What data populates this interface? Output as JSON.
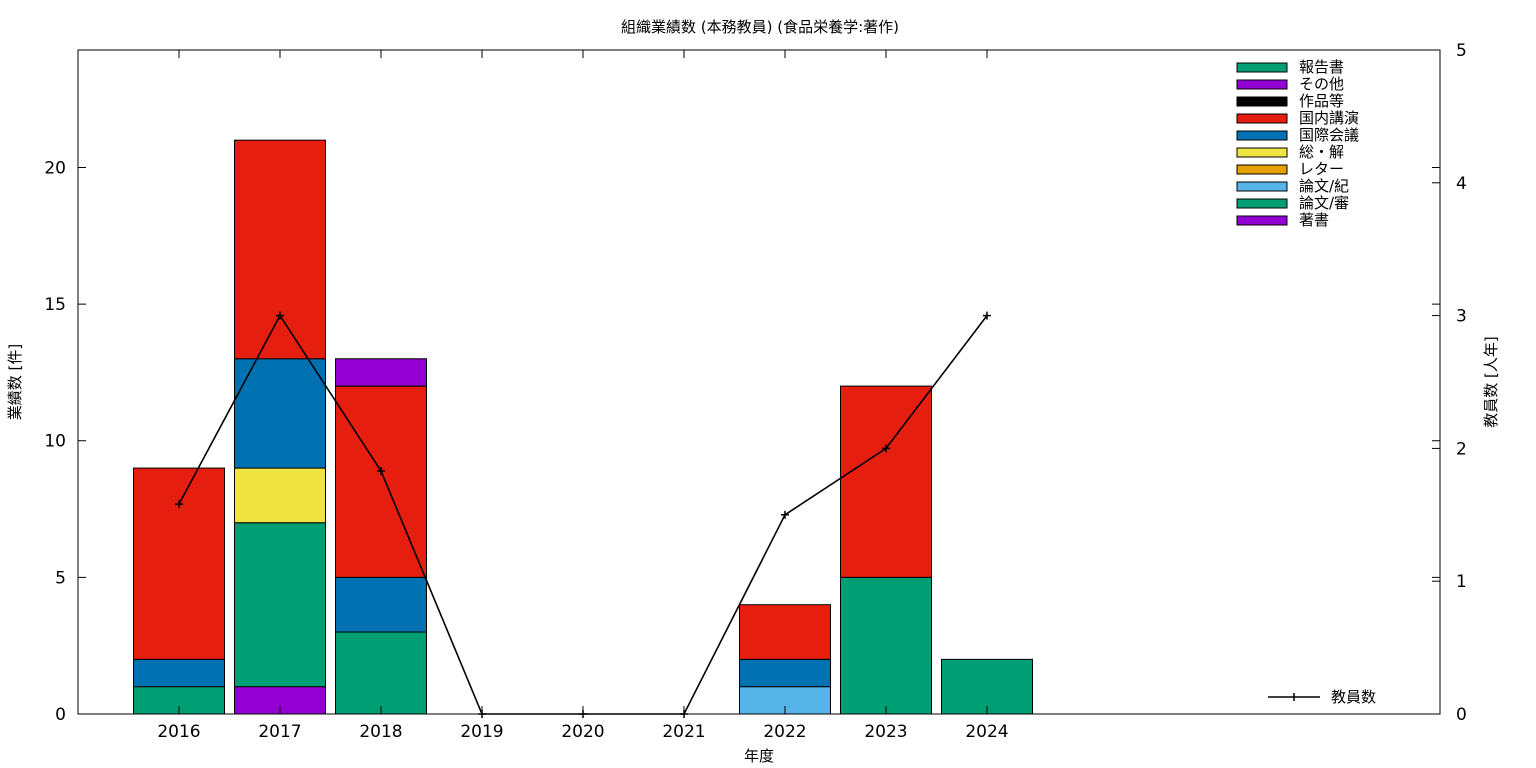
{
  "chart_data": {
    "type": "bar",
    "title": "組織業績数 (本務教員) (食品栄養学:著作)",
    "xlabel": "年度",
    "ylabel": "業績数 [件]",
    "y2label": "教員数 [人年]",
    "categories": [
      "2016",
      "2017",
      "2018",
      "2019",
      "2020",
      "2021",
      "2022",
      "2023",
      "2024"
    ],
    "ylim": [
      0,
      24.3
    ],
    "y_ticks": [
      0,
      5,
      10,
      15,
      20
    ],
    "y2lim": [
      0,
      5
    ],
    "y2_ticks": [
      0,
      1,
      2,
      3,
      4,
      5
    ],
    "stacked": true,
    "legend_position": "top-right",
    "series": [
      {
        "name": "著書",
        "color": "#9400d3",
        "values": [
          0,
          1,
          0,
          0,
          0,
          0,
          0,
          0,
          0
        ]
      },
      {
        "name": "論文/審",
        "color": "#009e73",
        "values": [
          1,
          6,
          3,
          0,
          0,
          0,
          0,
          5,
          2
        ]
      },
      {
        "name": "論文/紀",
        "color": "#56b4e9",
        "values": [
          0,
          0,
          0,
          0,
          0,
          0,
          1,
          0,
          0
        ]
      },
      {
        "name": "レター",
        "color": "#e69f00",
        "values": [
          0,
          0,
          0,
          0,
          0,
          0,
          0,
          0,
          0
        ]
      },
      {
        "name": "総・解",
        "color": "#f0e442",
        "values": [
          0,
          2,
          0,
          0,
          0,
          0,
          0,
          0,
          0
        ]
      },
      {
        "name": "国際会議",
        "color": "#0072b2",
        "values": [
          1,
          4,
          2,
          0,
          0,
          0,
          1,
          0,
          0
        ]
      },
      {
        "name": "国内講演",
        "color": "#e51e10",
        "values": [
          7,
          8,
          7,
          0,
          0,
          0,
          2,
          7,
          0
        ]
      },
      {
        "name": "作品等",
        "color": "#000000",
        "values": [
          0,
          0,
          0,
          0,
          0,
          0,
          0,
          0,
          0
        ]
      },
      {
        "name": "その他",
        "color": "#9400d3",
        "values": [
          0,
          0,
          1,
          0,
          0,
          0,
          0,
          0,
          0
        ]
      },
      {
        "name": "報告書",
        "color": "#009e73",
        "values": [
          0,
          0,
          0,
          0,
          0,
          0,
          0,
          0,
          0
        ]
      }
    ],
    "legend_order": [
      "報告書",
      "その他",
      "作品等",
      "国内講演",
      "国際会議",
      "総・解",
      "レター",
      "論文/紀",
      "論文/審",
      "著書"
    ],
    "line_series": {
      "name": "教員数",
      "axis": "y2",
      "color": "#000000",
      "values": [
        1.58,
        3.0,
        1.83,
        0,
        0,
        0,
        1.5,
        2.0,
        3.0
      ]
    }
  }
}
